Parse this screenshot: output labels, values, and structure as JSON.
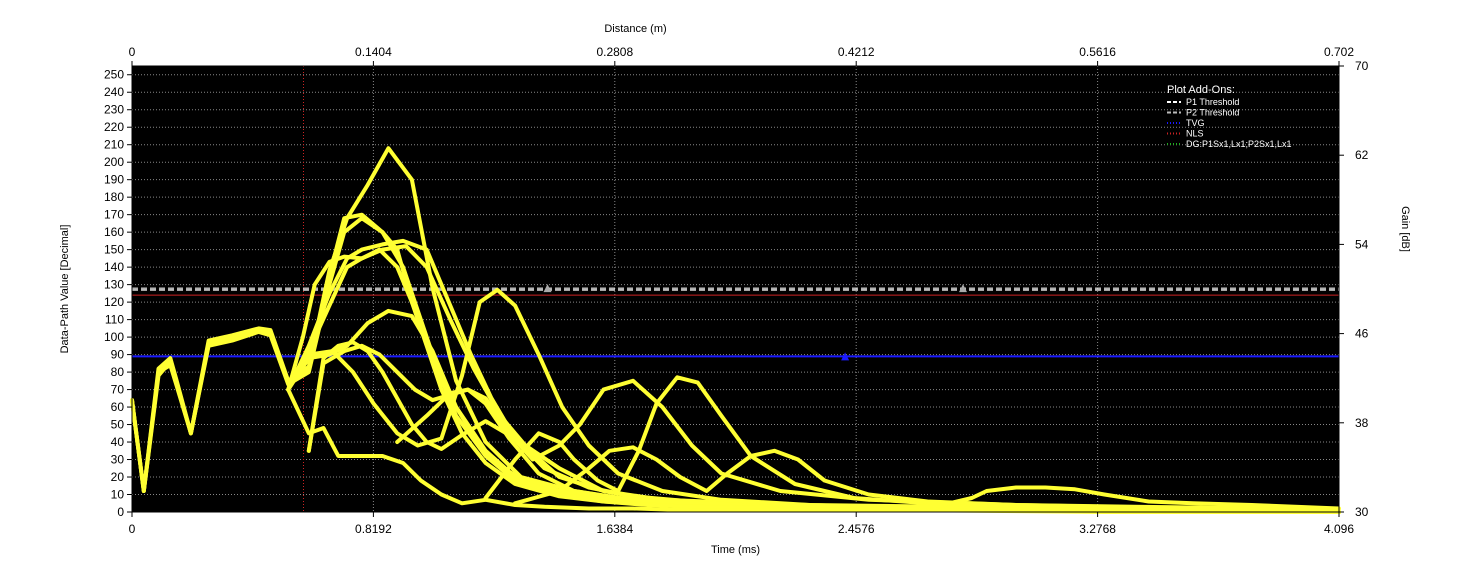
{
  "chart_data": {
    "type": "line",
    "x_label": "Time (ms)",
    "x_ticks": [
      "0",
      "0.8192",
      "1.6384",
      "2.4576",
      "3.2768",
      "4.096"
    ],
    "x_range": [
      0,
      4.096
    ],
    "x2_label": "Distance (m)",
    "x2_ticks": [
      "0",
      "0.1404",
      "0.2808",
      "0.4212",
      "0.5616",
      "0.702"
    ],
    "y_label": "Data-Path Value [Decimal]",
    "y_ticks": [
      "0",
      "10",
      "20",
      "30",
      "40",
      "50",
      "60",
      "70",
      "80",
      "90",
      "100",
      "110",
      "120",
      "130",
      "140",
      "150",
      "160",
      "170",
      "180",
      "190",
      "200",
      "210",
      "220",
      "230",
      "240",
      "250"
    ],
    "y_range": [
      0,
      255
    ],
    "y2_label": "Gain [dB]",
    "y2_ticks": [
      "30",
      "38",
      "46",
      "54",
      "62",
      "70"
    ],
    "y2_range": [
      30,
      70
    ],
    "grid": true,
    "legend_title": "Plot Add-Ons:",
    "legend_position": "top-right",
    "legend": [
      {
        "label": "P1 Threshold",
        "color": "#ffffff",
        "style": "dashed"
      },
      {
        "label": "P2 Threshold",
        "color": "#bbbbbb",
        "style": "dashed"
      },
      {
        "label": "TVG",
        "color": "#1a1aff",
        "style": "dotted"
      },
      {
        "label": "NLS",
        "color": "#cc2222",
        "style": "dotted"
      },
      {
        "label": "DG:P1Sx1,Lx1;P2Sx1,Lx1",
        "color": "#22aa22",
        "style": "dotted"
      }
    ],
    "colors": {
      "plot_background": "#000000",
      "series": "#ffff33",
      "grid": "#888888",
      "marker_line": "#cc2222"
    },
    "threshold_p1": 128,
    "threshold_p2": 127,
    "tvg_level": 89,
    "nls_level": 124,
    "marker_time": 0.582,
    "series": [
      {
        "x": [
          0,
          0.04,
          0.09,
          0.13,
          0.15,
          0.2,
          0.26,
          0.34,
          0.43,
          0.47,
          0.53,
          0.6,
          0.67,
          0.73,
          0.8,
          0.87,
          0.95,
          1.02,
          1.1,
          1.2,
          1.32,
          1.5,
          1.7,
          1.9,
          2.2,
          2.6,
          3.0,
          3.6,
          4.096
        ],
        "y": [
          64,
          12,
          82,
          88,
          76,
          45,
          98,
          101,
          105,
          104,
          75,
          83,
          138,
          168,
          187,
          208,
          190,
          128,
          75,
          40,
          20,
          12,
          7,
          5,
          3,
          2,
          1,
          1,
          0
        ]
      },
      {
        "x": [
          0,
          0.04,
          0.09,
          0.13,
          0.15,
          0.2,
          0.26,
          0.34,
          0.43,
          0.47,
          0.53,
          0.6,
          0.67,
          0.72,
          0.78,
          0.85,
          0.9,
          0.95,
          1.02,
          1.1,
          1.2,
          1.3,
          1.45,
          1.6,
          1.8,
          2.0,
          2.4,
          3.0,
          4.096
        ],
        "y": [
          64,
          12,
          80,
          84,
          73,
          45,
          95,
          98,
          103,
          101,
          73,
          80,
          130,
          160,
          168,
          160,
          150,
          120,
          90,
          60,
          35,
          20,
          12,
          8,
          5,
          3,
          2,
          1,
          0
        ]
      },
      {
        "x": [
          0,
          0.04,
          0.09,
          0.13,
          0.15,
          0.2,
          0.26,
          0.34,
          0.43,
          0.47,
          0.53,
          0.6,
          0.67,
          0.72,
          0.78,
          0.85,
          0.92,
          0.98,
          1.04,
          1.1,
          1.2,
          1.3,
          1.45,
          1.6,
          1.8,
          2.1,
          2.6,
          3.3,
          4.096
        ],
        "y": [
          64,
          12,
          78,
          86,
          74,
          45,
          96,
          100,
          104,
          102,
          74,
          82,
          135,
          168,
          170,
          160,
          140,
          110,
          80,
          55,
          32,
          18,
          10,
          7,
          4,
          3,
          2,
          1,
          0
        ]
      },
      {
        "x": [
          0.53,
          0.58,
          0.62,
          0.67,
          0.72,
          0.78,
          0.84,
          0.9,
          0.95,
          1.0,
          1.05,
          1.12,
          1.2,
          1.3,
          1.45,
          1.6,
          1.8,
          2.1,
          2.6,
          3.2,
          4.096
        ],
        "y": [
          70,
          100,
          130,
          143,
          146,
          145,
          150,
          140,
          120,
          95,
          70,
          45,
          28,
          16,
          9,
          6,
          4,
          3,
          2,
          1,
          0
        ]
      },
      {
        "x": [
          0.53,
          0.6,
          0.67,
          0.73,
          0.78,
          0.85,
          0.92,
          1.0,
          1.08,
          1.15,
          1.22,
          1.3,
          1.4,
          1.55,
          1.7,
          1.9,
          2.2,
          2.7,
          3.3,
          4.096
        ],
        "y": [
          70,
          95,
          125,
          145,
          150,
          153,
          155,
          150,
          118,
          90,
          65,
          42,
          25,
          14,
          9,
          6,
          4,
          3,
          2,
          0
        ]
      },
      {
        "x": [
          0.53,
          0.6,
          0.67,
          0.73,
          0.78,
          0.85,
          0.93,
          1.0,
          1.08,
          1.16,
          1.25,
          1.35,
          1.45,
          1.6,
          1.8,
          2.1,
          2.5,
          3.2,
          4.096
        ],
        "y": [
          70,
          92,
          118,
          140,
          145,
          150,
          152,
          140,
          110,
          82,
          55,
          35,
          20,
          12,
          7,
          5,
          3,
          2,
          0
        ]
      },
      {
        "x": [
          0.6,
          0.65,
          0.7,
          0.75,
          0.8,
          0.85,
          0.9,
          0.95,
          1.0,
          1.05,
          1.12,
          1.2,
          1.3,
          1.45,
          1.6,
          1.8,
          2.1,
          2.6,
          3.2,
          4.096
        ],
        "y": [
          35,
          88,
          95,
          97,
          92,
          80,
          65,
          50,
          40,
          36,
          44,
          52,
          42,
          25,
          12,
          6,
          4,
          2,
          1,
          0
        ]
      },
      {
        "x": [
          0.6,
          0.65,
          0.72,
          0.78,
          0.84,
          0.9,
          0.96,
          1.02,
          1.08,
          1.14,
          1.2,
          1.28,
          1.38,
          1.5,
          1.65,
          1.8,
          2.1,
          2.6,
          3.2,
          4.096
        ],
        "y": [
          35,
          85,
          92,
          95,
          90,
          80,
          70,
          64,
          67,
          70,
          62,
          42,
          22,
          12,
          8,
          6,
          4,
          2,
          1,
          0
        ]
      },
      {
        "x": [
          0.53,
          0.6,
          0.67,
          0.73,
          0.8,
          0.87,
          0.95,
          1.02,
          1.1,
          1.18,
          1.26,
          1.35,
          1.45,
          1.6,
          1.75,
          1.9,
          2.2,
          2.6,
          3.2,
          4.096
        ],
        "y": [
          70,
          88,
          90,
          95,
          108,
          115,
          112,
          92,
          60,
          38,
          25,
          16,
          10,
          6,
          4,
          3,
          2,
          1,
          1,
          0
        ]
      },
      {
        "x": [
          0.53,
          0.6,
          0.65,
          0.7,
          0.78,
          0.85,
          0.92,
          0.98,
          1.05,
          1.12,
          1.2,
          1.3,
          1.4,
          1.55,
          1.7,
          1.9,
          2.2,
          2.7,
          3.3,
          4.096
        ],
        "y": [
          70,
          45,
          48,
          32,
          32,
          32,
          28,
          18,
          10,
          5,
          7,
          4,
          3,
          2,
          2,
          1,
          1,
          1,
          0,
          0
        ]
      },
      {
        "x": [
          0.6,
          0.68,
          0.75,
          0.82,
          0.9,
          0.97,
          1.05,
          1.12,
          1.18,
          1.24,
          1.3,
          1.38,
          1.46,
          1.55,
          1.65,
          1.8,
          2.0,
          2.3,
          2.8,
          3.4,
          4.096
        ],
        "y": [
          90,
          92,
          80,
          62,
          45,
          38,
          42,
          78,
          120,
          127,
          118,
          90,
          60,
          38,
          22,
          12,
          7,
          4,
          3,
          1,
          0
        ]
      },
      {
        "x": [
          0.9,
          1.0,
          1.08,
          1.14,
          1.2,
          1.28,
          1.36,
          1.45,
          1.52,
          1.6,
          1.7,
          1.8,
          1.9,
          2.0,
          2.2,
          2.5,
          3.0,
          3.6,
          4.096
        ],
        "y": [
          40,
          55,
          68,
          70,
          65,
          45,
          30,
          38,
          50,
          70,
          75,
          60,
          38,
          22,
          12,
          7,
          4,
          2,
          0
        ]
      },
      {
        "x": [
          1.2,
          1.3,
          1.38,
          1.45,
          1.5,
          1.58,
          1.65,
          1.72,
          1.78,
          1.85,
          1.92,
          2.0,
          2.1,
          2.25,
          2.45,
          2.7,
          3.1,
          3.6,
          4.096
        ],
        "y": [
          8,
          30,
          45,
          40,
          30,
          18,
          12,
          35,
          62,
          77,
          74,
          55,
          32,
          16,
          8,
          5,
          3,
          2,
          0
        ]
      },
      {
        "x": [
          1.3,
          1.45,
          1.55,
          1.62,
          1.7,
          1.78,
          1.86,
          1.95,
          2.02,
          2.1,
          2.18,
          2.26,
          2.35,
          2.5,
          2.7,
          3.0,
          3.4,
          3.9,
          4.096
        ],
        "y": [
          5,
          12,
          25,
          35,
          37,
          30,
          20,
          12,
          22,
          32,
          35,
          30,
          18,
          10,
          6,
          4,
          3,
          2,
          0
        ]
      },
      {
        "x": [
          2.6,
          2.75,
          2.85,
          2.9,
          3.0,
          3.1,
          3.2,
          3.3,
          3.45,
          3.6,
          3.8,
          4.096
        ],
        "y": [
          2,
          4,
          8,
          12,
          14,
          14,
          13,
          10,
          6,
          5,
          4,
          2
        ]
      }
    ]
  }
}
